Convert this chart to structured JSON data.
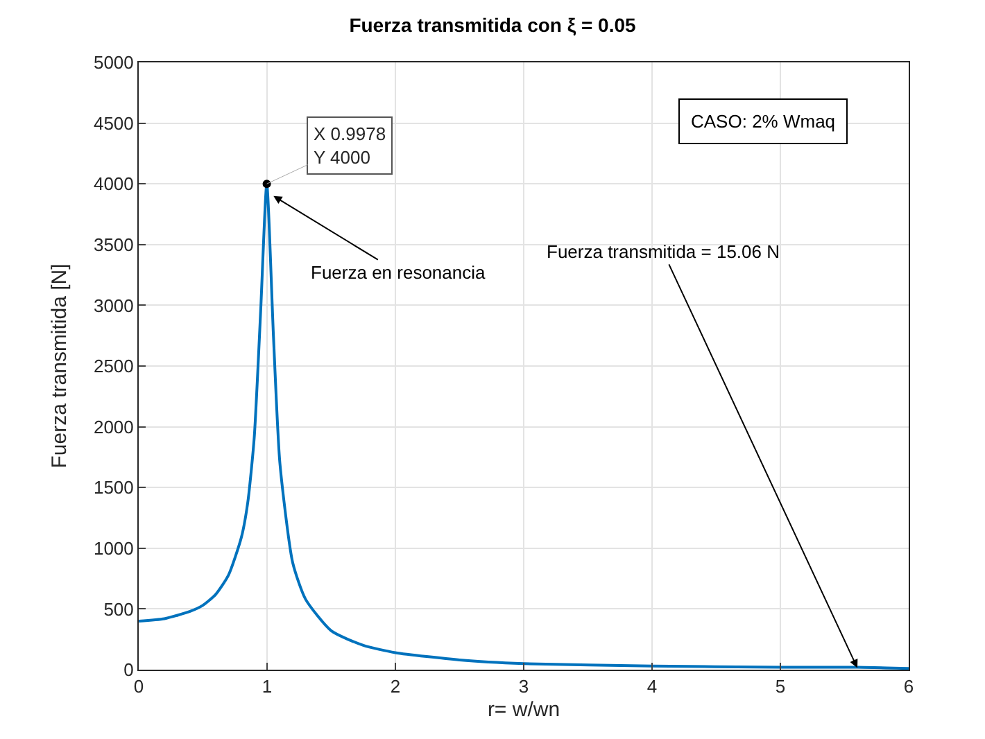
{
  "chart_data": {
    "type": "line",
    "title": "Fuerza transmitida con ξ = 0.05",
    "xlabel": "r= w/wn",
    "ylabel": "Fuerza transmitida [N]",
    "x": [
      0,
      0.2,
      0.4,
      0.5,
      0.6,
      0.7,
      0.8,
      0.85,
      0.9,
      0.95,
      0.9978,
      1.05,
      1.1,
      1.2,
      1.3,
      1.5,
      1.75,
      2,
      2.5,
      3,
      4,
      5,
      5.6,
      6
    ],
    "series": [
      {
        "color": "#0072bd",
        "values": [
          400,
          420,
          480,
          530,
          620,
          780,
          1090,
          1380,
          1910,
          2950,
          4000,
          2740,
          1700,
          880,
          580,
          320,
          200,
          140,
          80,
          50,
          30,
          20,
          20,
          10
        ]
      }
    ],
    "xlim": [
      0,
      6
    ],
    "xticks": [
      0,
      1,
      2,
      3,
      4,
      5,
      6
    ],
    "ylim": [
      0,
      5000
    ],
    "yticks": [
      0,
      500,
      1000,
      1500,
      2000,
      2500,
      3000,
      3500,
      4000,
      4500,
      5000
    ],
    "grid": true,
    "marker": "none",
    "line_style": "solid",
    "annotations": [
      {
        "text": "X 0.9978\nY 4000",
        "x": 0.9978,
        "y": 4000
      },
      {
        "text": "Fuerza en resonancia",
        "x": 1.05,
        "y": 3900
      },
      {
        "text": "Fuerza transmitida = 15.06 N",
        "x": 5.6,
        "y": 15
      },
      "CASO: 2% Wmaq"
    ]
  }
}
